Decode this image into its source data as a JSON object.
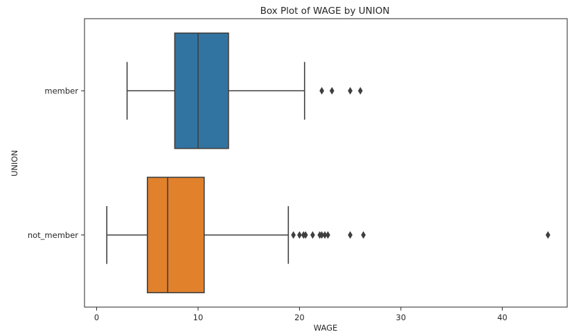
{
  "chart_data": {
    "type": "box",
    "orientation": "horizontal",
    "title": "Box Plot of WAGE by UNION",
    "xlabel": "WAGE",
    "ylabel": "UNION",
    "xlim": [
      -1.2,
      46.4
    ],
    "xticks": [
      0,
      10,
      20,
      30,
      40
    ],
    "categories": [
      "member",
      "not_member"
    ],
    "grid": false,
    "legend": "none",
    "series": [
      {
        "category": "member",
        "color": "#3274a1",
        "whisker_low": 3.0,
        "q1": 7.7,
        "median": 10.0,
        "q3": 13.0,
        "whisker_high": 20.5,
        "outliers": [
          22.2,
          23.2,
          25.0,
          26.0
        ]
      },
      {
        "category": "not_member",
        "color": "#e1812c",
        "whisker_low": 1.0,
        "q1": 5.0,
        "median": 7.0,
        "q3": 10.6,
        "whisker_high": 18.9,
        "outliers": [
          19.4,
          20.0,
          20.4,
          20.6,
          21.3,
          22.0,
          22.2,
          22.5,
          22.8,
          25.0,
          26.3,
          44.5
        ]
      }
    ]
  }
}
